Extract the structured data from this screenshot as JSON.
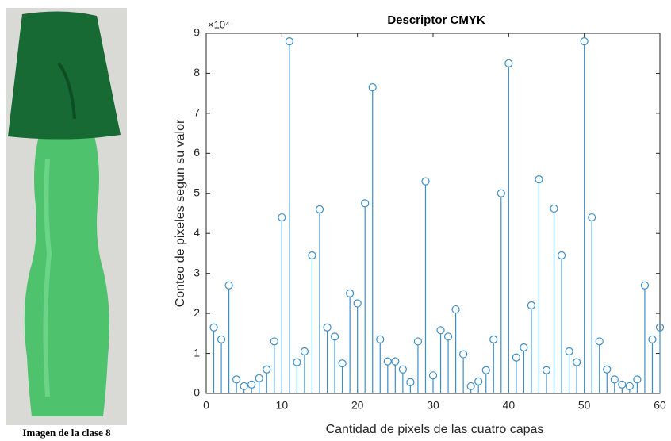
{
  "image_caption": "Imagen de la clase 8",
  "chart_data": {
    "type": "stem",
    "title": "Descriptor CMYK",
    "xlabel": "Cantidad de pixels de las cuatro capas",
    "ylabel": "Conteo de pixeles segun su valor",
    "y_multiplier": "×10⁴",
    "color": "#3d8ec6",
    "x": [
      1,
      2,
      3,
      4,
      5,
      6,
      7,
      8,
      9,
      10,
      11,
      12,
      13,
      14,
      15,
      16,
      17,
      18,
      19,
      20,
      21,
      22,
      23,
      24,
      25,
      26,
      27,
      28,
      29,
      30,
      31,
      32,
      33,
      34,
      35,
      36,
      37,
      38,
      39,
      40,
      41,
      42,
      43,
      44,
      45,
      46,
      47,
      48,
      49,
      50,
      51,
      52,
      53,
      54,
      55,
      56,
      57,
      58,
      59,
      60
    ],
    "values": [
      1.65,
      1.35,
      2.7,
      0.35,
      0.18,
      0.22,
      0.38,
      0.6,
      1.3,
      4.4,
      8.8,
      0.78,
      1.05,
      3.45,
      4.6,
      1.65,
      1.42,
      0.75,
      2.5,
      2.25,
      4.75,
      7.65,
      1.35,
      0.8,
      0.8,
      0.6,
      0.28,
      1.3,
      5.3,
      0.45,
      1.58,
      1.42,
      2.1,
      0.98,
      0.18,
      0.3,
      0.58,
      1.35,
      5.0,
      8.25,
      0.9,
      1.15,
      2.2,
      5.35,
      0.58,
      4.62,
      3.45,
      1.05,
      0.78,
      8.8,
      4.4,
      1.3,
      0.6,
      0.35,
      0.22,
      0.18,
      0.35,
      2.7,
      1.35,
      1.65
    ],
    "xlim": [
      0,
      60
    ],
    "xticks": [
      0,
      10,
      20,
      30,
      40,
      50,
      60
    ],
    "ylim": [
      0,
      9
    ],
    "yticks": [
      0,
      1,
      2,
      3,
      4,
      5,
      6,
      7,
      8,
      9
    ]
  }
}
